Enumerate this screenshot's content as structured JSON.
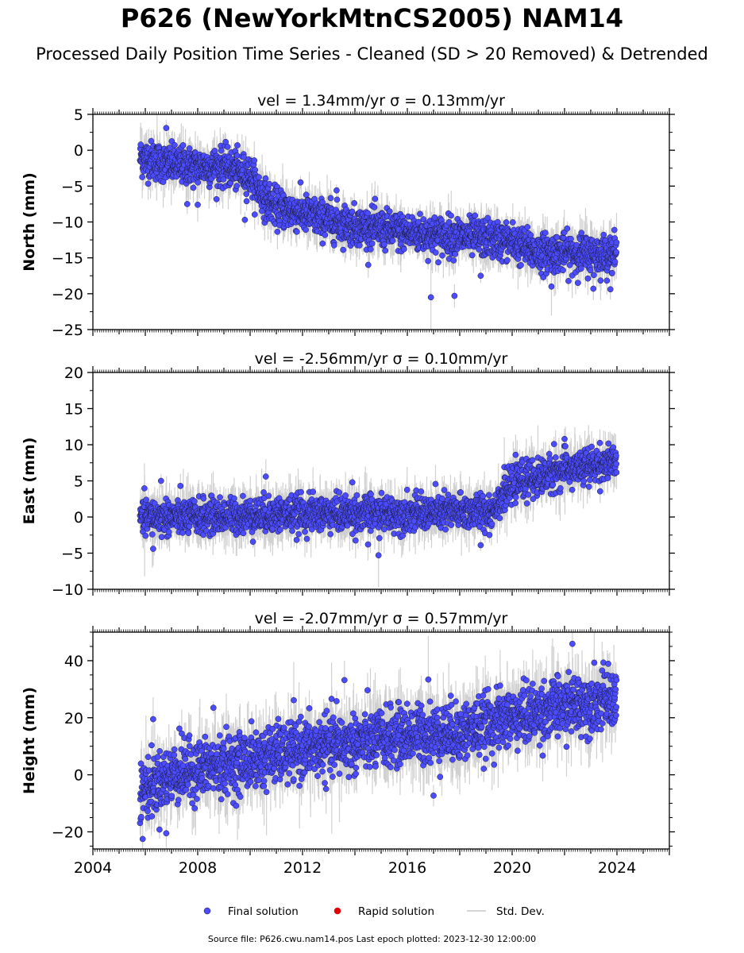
{
  "figure": {
    "title": "P626 (NewYorkMtnCS2005) NAM14",
    "subtitle": "Processed Daily Position Time Series - Cleaned (SD > 20 Removed) & Detrended",
    "footer": "Source file: P626.cwu.nam14.pos  Last epoch plotted: 2023-12-30 12:00:00"
  },
  "colors": {
    "final_solution": "#4b4bff",
    "final_solution_edge": "#1a1a33",
    "rapid_solution": "#e00000",
    "std_dev": "#c8c8c8",
    "axes": "#000000"
  },
  "chart_data": {
    "type": "scatter",
    "x_axis": {
      "range": [
        2004,
        2026
      ],
      "major_ticks": [
        2004,
        2008,
        2012,
        2016,
        2020,
        2024
      ],
      "tick_labels": [
        "2004",
        "2008",
        "2012",
        "2016",
        "2020",
        "2024"
      ],
      "minor_ticks_per_year": 12
    },
    "legend": {
      "placement": "bottom-center",
      "entries": [
        {
          "label": "Final solution",
          "marker": "circle",
          "color": "#4b4bff"
        },
        {
          "label": "Rapid solution",
          "marker": "circle",
          "color": "#e00000"
        },
        {
          "label": "Std. Dev.",
          "marker": "line",
          "color": "#c8c8c8"
        }
      ]
    },
    "data_range": {
      "start": 2005.8,
      "end": 2023.99
    },
    "panels": [
      {
        "id": "north",
        "title": "vel = 1.34mm/yr   σ = 0.13mm/yr",
        "ylabel": "North (mm)",
        "ylim": [
          -25,
          5
        ],
        "yticks": [
          -25,
          -20,
          -15,
          -10,
          -5,
          0,
          5
        ],
        "ytick_labels": [
          "−25",
          "−20",
          "−15",
          "−10",
          "−5",
          "0",
          "5"
        ],
        "yminor_step": 2.5,
        "trend": [
          [
            2005.8,
            -1.0
          ],
          [
            2007.0,
            -2.0
          ],
          [
            2008.0,
            -2.3
          ],
          [
            2009.0,
            -2.3
          ],
          [
            2010.0,
            -3.5
          ],
          [
            2010.5,
            -6.5
          ],
          [
            2011.0,
            -8.0
          ],
          [
            2012.0,
            -8.8
          ],
          [
            2013.0,
            -9.8
          ],
          [
            2014.0,
            -10.5
          ],
          [
            2015.0,
            -11.0
          ],
          [
            2016.0,
            -11.5
          ],
          [
            2017.0,
            -11.8
          ],
          [
            2018.0,
            -12.0
          ],
          [
            2019.0,
            -12.3
          ],
          [
            2020.0,
            -12.8
          ],
          [
            2021.0,
            -14.3
          ],
          [
            2022.0,
            -14.3
          ],
          [
            2023.0,
            -14.5
          ],
          [
            2024.0,
            -14.5
          ]
        ],
        "scatter_sd": 1.3,
        "error_sd": 1.4,
        "outliers": [
          [
            2006.8,
            3.1
          ],
          [
            2007.6,
            -7.5
          ],
          [
            2008.0,
            -7.6
          ],
          [
            2009.8,
            -9.7
          ],
          [
            2013.3,
            -5.6
          ],
          [
            2016.9,
            -20.5
          ],
          [
            2017.8,
            -20.3
          ],
          [
            2018.8,
            -17.5
          ],
          [
            2021.5,
            -19.0
          ],
          [
            2023.1,
            -19.3
          ]
        ]
      },
      {
        "id": "east",
        "title": "vel = -2.56mm/yr   σ = 0.10mm/yr",
        "ylabel": "East (mm)",
        "ylim": [
          -10,
          20
        ],
        "yticks": [
          -10,
          -5,
          0,
          5,
          10,
          15,
          20
        ],
        "ytick_labels": [
          "−10",
          "−5",
          "0",
          "5",
          "10",
          "15",
          "20"
        ],
        "yminor_step": 2.5,
        "trend": [
          [
            2005.8,
            0.0
          ],
          [
            2008.0,
            0.0
          ],
          [
            2012.0,
            0.5
          ],
          [
            2016.0,
            0.5
          ],
          [
            2019.2,
            0.8
          ],
          [
            2019.6,
            3.0
          ],
          [
            2020.2,
            5.0
          ],
          [
            2021.0,
            5.5
          ],
          [
            2022.0,
            6.5
          ],
          [
            2023.0,
            7.0
          ],
          [
            2024.0,
            7.5
          ]
        ],
        "scatter_sd": 1.2,
        "error_sd": 1.5,
        "outliers": [
          [
            2006.6,
            5.0
          ],
          [
            2006.3,
            -4.4
          ],
          [
            2010.6,
            5.6
          ],
          [
            2013.9,
            4.8
          ],
          [
            2014.9,
            -5.3
          ],
          [
            2014.5,
            -3.8
          ],
          [
            2018.8,
            -3.9
          ],
          [
            2022.0,
            10.8
          ],
          [
            2021.6,
            10.1
          ],
          [
            2020.8,
            2.5
          ]
        ]
      },
      {
        "id": "height",
        "title": "vel = -2.07mm/yr   σ = 0.57mm/yr",
        "ylabel": "Height (mm)",
        "ylim": [
          -26,
          50
        ],
        "yticks": [
          -20,
          0,
          20,
          40
        ],
        "ytick_labels": [
          "−20",
          "0",
          "20",
          "40"
        ],
        "yminor_step": 5,
        "trend": [
          [
            2005.8,
            -6.0
          ],
          [
            2007.0,
            0.0
          ],
          [
            2008.0,
            2.0
          ],
          [
            2010.0,
            5.0
          ],
          [
            2012.0,
            9.0
          ],
          [
            2014.0,
            11.0
          ],
          [
            2016.0,
            14.0
          ],
          [
            2018.0,
            15.0
          ],
          [
            2020.0,
            20.0
          ],
          [
            2022.0,
            24.0
          ],
          [
            2024.0,
            27.0
          ]
        ],
        "scatter_sd": 5.0,
        "error_sd": 5.5,
        "outliers": [
          [
            2006.3,
            19.5
          ],
          [
            2007.3,
            16.2
          ],
          [
            2008.6,
            23.5
          ],
          [
            2013.3,
            25.8
          ],
          [
            2013.6,
            33.2
          ],
          [
            2016.8,
            33.4
          ],
          [
            2017.0,
            -7.3
          ],
          [
            2005.9,
            -22.5
          ],
          [
            2006.8,
            -20.5
          ],
          [
            2022.3,
            45.9
          ]
        ]
      }
    ]
  }
}
